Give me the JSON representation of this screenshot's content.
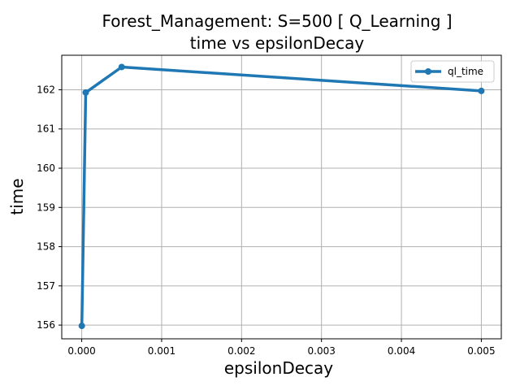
{
  "chart_data": {
    "type": "line",
    "title": "Forest_Management: S=500 [ Q_Learning ]",
    "subtitle": "time vs epsilonDecay",
    "xlabel": "epsilonDecay",
    "ylabel": "time",
    "xlim": [
      -0.00025,
      0.00525
    ],
    "ylim": [
      155.65,
      162.88
    ],
    "xticks": [
      0.0,
      0.001,
      0.002,
      0.003,
      0.004,
      0.005
    ],
    "xtick_labels": [
      "0.000",
      "0.001",
      "0.002",
      "0.003",
      "0.004",
      "0.005"
    ],
    "yticks": [
      156,
      157,
      158,
      159,
      160,
      161,
      162
    ],
    "ytick_labels": [
      "156",
      "157",
      "158",
      "159",
      "160",
      "161",
      "162"
    ],
    "grid": true,
    "legend_position": "top-right",
    "series": [
      {
        "name": "ql_time",
        "color": "#1f77b4",
        "x": [
          1e-06,
          5e-05,
          0.0005,
          0.005
        ],
        "y": [
          155.98,
          161.93,
          162.58,
          161.97
        ]
      }
    ]
  }
}
